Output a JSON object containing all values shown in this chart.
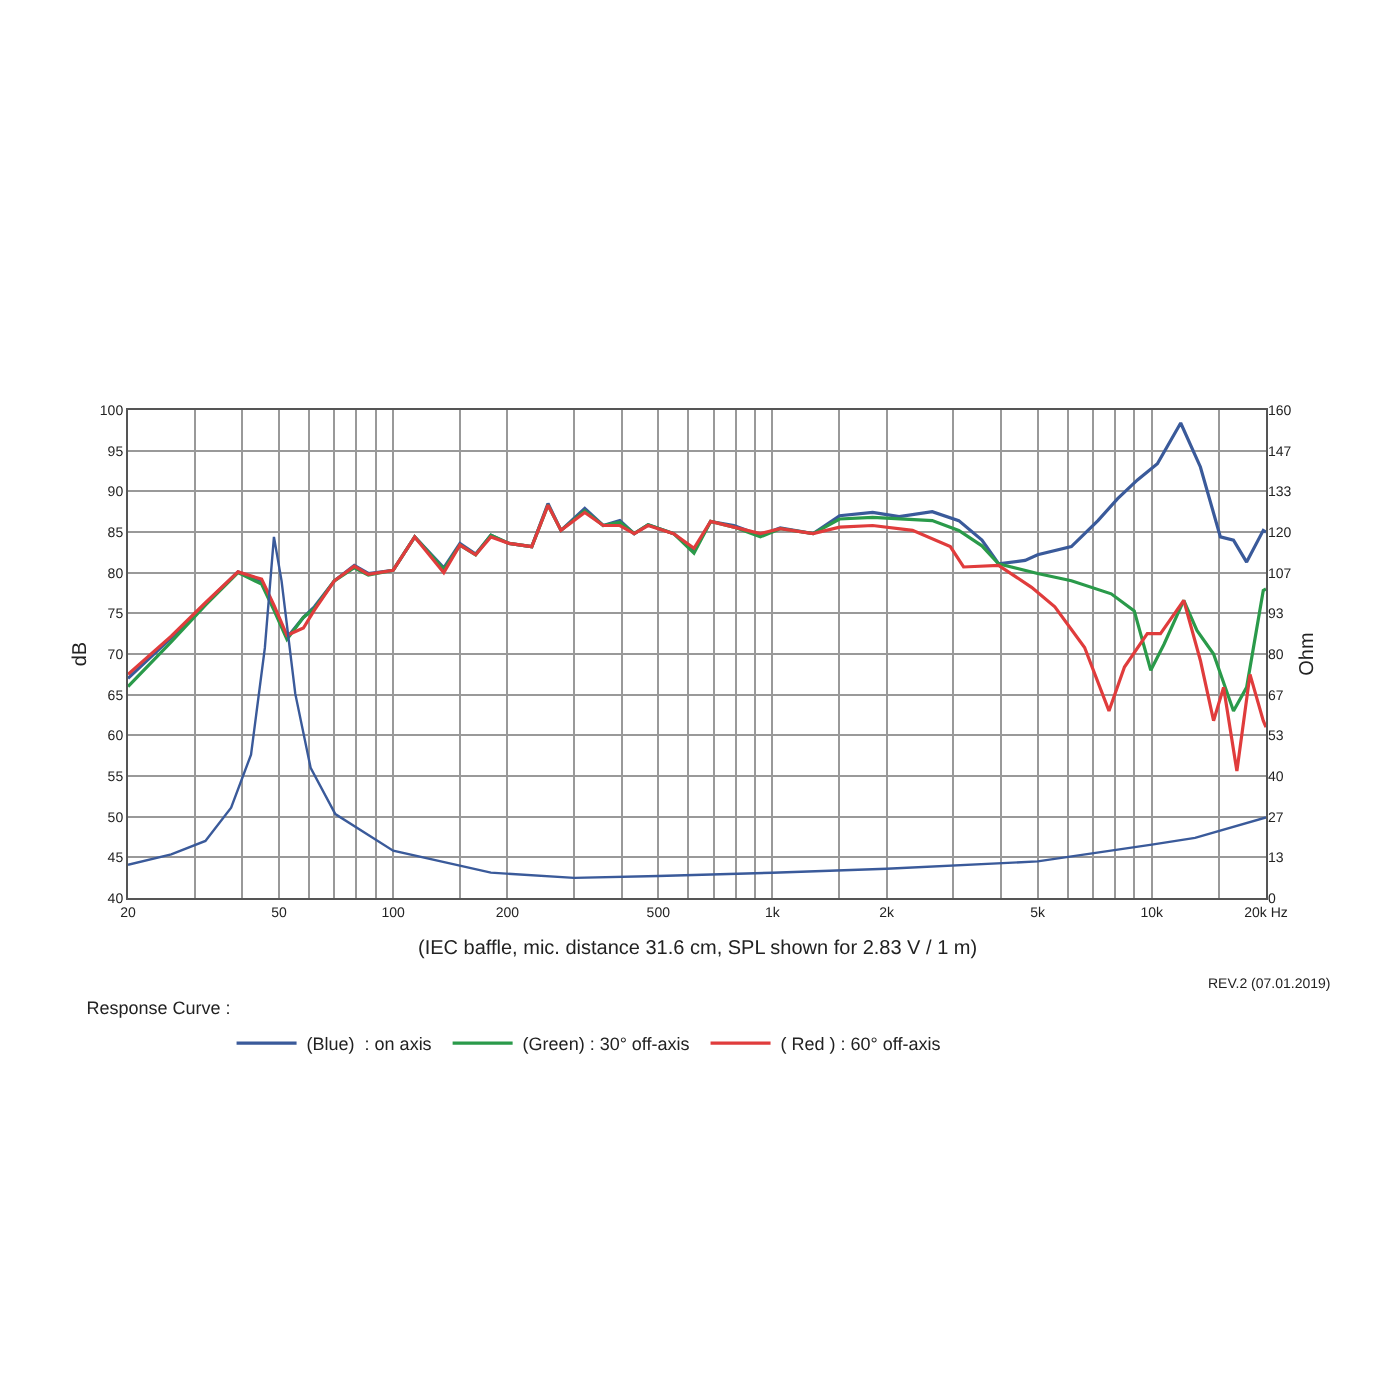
{
  "chart_data": {
    "type": "line",
    "ylabel": "dB",
    "y2label": "Ohm",
    "legend_title": "Response Curve :",
    "log": "x",
    "grid": true,
    "legend": "bottom",
    "annotations": [
      "(IEC baffle, mic. distance 31.6 cm, SPL shown for 2.83 V / 1 m)",
      "REV.2 (07.01.2019)"
    ],
    "xlim": [
      20,
      20000
    ],
    "xticks": [
      20,
      {
        "value": 30,
        "label": null
      },
      {
        "value": 40,
        "label": null
      },
      50,
      {
        "value": 60,
        "label": null
      },
      {
        "value": 70,
        "label": null
      },
      {
        "value": 80,
        "label": null
      },
      {
        "value": 90,
        "label": null
      },
      100,
      {
        "value": 150,
        "label": null
      },
      200,
      {
        "value": 300,
        "label": null
      },
      {
        "value": 400,
        "label": null
      },
      500,
      {
        "value": 600,
        "label": null
      },
      {
        "value": 700,
        "label": null
      },
      {
        "value": 800,
        "label": null
      },
      {
        "value": 900,
        "label": null
      },
      {
        "value": 1000,
        "label": "1k"
      },
      {
        "value": 1500,
        "label": null
      },
      {
        "value": 2000,
        "label": "2k"
      },
      {
        "value": 3000,
        "label": null
      },
      {
        "value": 4000,
        "label": null
      },
      {
        "value": 5000,
        "label": "5k"
      },
      {
        "value": 6000,
        "label": null
      },
      {
        "value": 7000,
        "label": null
      },
      {
        "value": 8000,
        "label": null
      },
      {
        "value": 9000,
        "label": null
      },
      {
        "value": 10000,
        "label": "10k"
      },
      {
        "value": 15000,
        "label": null
      },
      {
        "value": 20000,
        "label": "20k Hz"
      }
    ],
    "ylim": [
      40,
      100
    ],
    "yticks": [
      40,
      45,
      50,
      55,
      60,
      65,
      70,
      75,
      80,
      85,
      90,
      95,
      100
    ],
    "y2lim": [
      0,
      160
    ],
    "y2ticks": [
      0,
      {
        "value": 13.33,
        "label": "13"
      },
      {
        "value": 26.67,
        "label": "27"
      },
      40,
      {
        "value": 53.33,
        "label": "53"
      },
      {
        "value": 66.67,
        "label": "67"
      },
      80,
      {
        "value": 93.33,
        "label": "93"
      },
      {
        "value": 106.67,
        "label": "107"
      },
      120,
      {
        "value": 133.33,
        "label": "133"
      },
      {
        "value": 146.67,
        "label": "147"
      },
      160
    ],
    "series": [
      {
        "name": "(Blue)  : on axis",
        "color": "#3a5a9a",
        "x": [
          20,
          26,
          32,
          39,
          45,
          48.5,
          52.5,
          58,
          62,
          70,
          79,
          86,
          100,
          114,
          136,
          150,
          165,
          181,
          202,
          232,
          256,
          277,
          320,
          358,
          396,
          432,
          470,
          549,
          621,
          687,
          791,
          929,
          1048,
          1280,
          1503,
          1837,
          2158,
          2637,
          3098,
          3566,
          3944,
          4634,
          5000,
          6137,
          7211,
          8128,
          9166,
          10344,
          11917,
          13430,
          15160,
          16420,
          17780,
          19670,
          20000
        ],
        "values": [
          67,
          72,
          76.2,
          80.1,
          79,
          75.8,
          72,
          74.5,
          75.8,
          79,
          80.9,
          79.9,
          80.3,
          84.4,
          80.6,
          83.6,
          82.3,
          84.6,
          83.6,
          83.2,
          88.5,
          85.2,
          87.9,
          85.8,
          86.4,
          84.8,
          85.9,
          84.8,
          82.7,
          86.3,
          85.8,
          84.6,
          85.5,
          84.8,
          87,
          87.4,
          86.9,
          87.5,
          86.4,
          84,
          81.1,
          81.5,
          82.2,
          83.2,
          86.4,
          89.1,
          91.4,
          93.4,
          98.4,
          93,
          84.4,
          84,
          81.3,
          85.2,
          85
        ]
      },
      {
        "name": "(Green) : 30° off-axis",
        "color": "#2a9a4a",
        "x": [
          20,
          26,
          32,
          39,
          45,
          48.5,
          52.5,
          58,
          62,
          70,
          79,
          86,
          100,
          114,
          136,
          150,
          165,
          181,
          202,
          232,
          256,
          277,
          320,
          358,
          396,
          432,
          470,
          549,
          621,
          687,
          791,
          929,
          1048,
          1280,
          1503,
          1837,
          2637,
          3098,
          3566,
          3944,
          5000,
          6137,
          7816,
          8990,
          9936,
          10770,
          12140,
          13150,
          14550,
          16420,
          17780,
          19670,
          20000
        ],
        "values": [
          66,
          71.5,
          76,
          80,
          78.6,
          75.4,
          71.8,
          74.5,
          75.6,
          79,
          80.6,
          79.7,
          80.3,
          84.4,
          80.4,
          83.4,
          82.2,
          84.6,
          83.6,
          83.2,
          88.3,
          85.2,
          87.6,
          85.8,
          86.2,
          84.8,
          85.9,
          84.8,
          82.4,
          86.3,
          85.6,
          84.4,
          85.4,
          84.8,
          86.6,
          86.8,
          86.4,
          85.2,
          83.3,
          81.1,
          79.9,
          79,
          77.4,
          75.3,
          68,
          71.2,
          76.6,
          72.9,
          70,
          63,
          65.9,
          77.8,
          78
        ]
      },
      {
        "name": "( Red ) : 60° off-axis",
        "color": "#e03c3c",
        "x": [
          20,
          26,
          32,
          39,
          45,
          48.5,
          52.5,
          58,
          62,
          70,
          79,
          86,
          100,
          114,
          136,
          150,
          165,
          181,
          202,
          232,
          256,
          277,
          320,
          358,
          396,
          432,
          470,
          549,
          621,
          687,
          791,
          929,
          1048,
          1280,
          1503,
          1837,
          2340,
          2943,
          3190,
          3944,
          4820,
          5550,
          6650,
          7710,
          8470,
          9730,
          10540,
          12140,
          13430,
          14550,
          15460,
          16760,
          18150,
          19670,
          20000
        ],
        "values": [
          67.5,
          72.2,
          76.3,
          80.1,
          79.2,
          76,
          72.3,
          73.2,
          75.4,
          79,
          80.8,
          79.8,
          80.3,
          84.4,
          80,
          83.4,
          82.2,
          84.4,
          83.6,
          83.2,
          88.3,
          85.2,
          87.4,
          85.8,
          85.8,
          84.8,
          85.8,
          84.8,
          83,
          86.3,
          85.6,
          84.8,
          85.4,
          84.8,
          85.6,
          85.8,
          85.2,
          83.2,
          80.7,
          80.9,
          78.2,
          75.8,
          70.8,
          63,
          68.4,
          72.5,
          72.5,
          76.6,
          69.2,
          61.8,
          65.9,
          55.6,
          67.5,
          61.8,
          61
        ]
      },
      {
        "axis": "y2",
        "color": "#3a5a9a",
        "x": [
          20,
          26,
          32,
          37.4,
          42.2,
          45.9,
          48.5,
          50.8,
          55.2,
          60.6,
          70.4,
          100,
          181,
          300,
          500,
          1000,
          2000,
          5000,
          10000,
          13000,
          20000
        ],
        "values": [
          10.9,
          14.3,
          18.7,
          29.6,
          47,
          82,
          118.4,
          104,
          67,
          42.7,
          27.5,
          15.5,
          8.3,
          6.6,
          7.2,
          8.3,
          9.6,
          12,
          17.5,
          19.7,
          26.4
        ]
      }
    ]
  }
}
